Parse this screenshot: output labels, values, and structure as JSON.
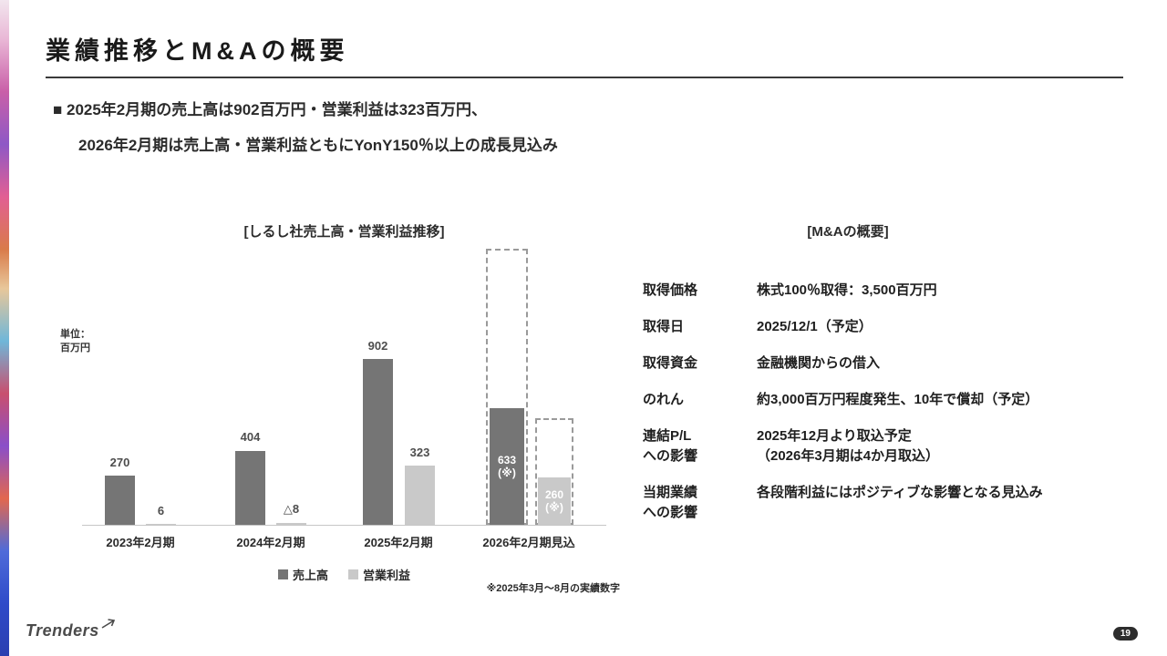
{
  "slide": {
    "title": "業績推移とM&Aの概要",
    "bullet_line1": "■ 2025年2月期の売上高は902百万円・営業利益は323百万円、",
    "bullet_line2": "2026年2月期は売上高・営業利益ともにYonY150％以上の成長見込み",
    "logo_text": "Trenders",
    "page_number": "19"
  },
  "chart": {
    "title": "[しるし社売上高・営業利益推移]",
    "unit_label": "単位：\n百万円",
    "legend": [
      {
        "label": "売上高",
        "color": "#757575"
      },
      {
        "label": "営業利益",
        "color": "#c9c9c9"
      }
    ],
    "footnote": "※2025年3月～8月の実績数字"
  },
  "chart_data": {
    "type": "bar",
    "title": "しるし社売上高・営業利益推移",
    "unit": "百万円",
    "categories": [
      "2023年2月期",
      "2024年2月期",
      "2025年2月期",
      "2026年2月期見込"
    ],
    "series": [
      {
        "name": "売上高",
        "color": "#757575",
        "values": [
          270,
          404,
          902,
          null
        ],
        "labels": [
          "270",
          "404",
          "902"
        ]
      },
      {
        "name": "営業利益",
        "color": "#c9c9c9",
        "values": [
          6,
          -8,
          323,
          null
        ],
        "labels": [
          "6",
          "△8",
          "323"
        ]
      }
    ],
    "forecast": {
      "category": "2026年2月期見込",
      "sales_actual": 633,
      "sales_actual_label": "633\n(※)",
      "sales_outline_estimate": 1500,
      "profit_actual": 260,
      "profit_actual_label": "260\n(※)",
      "profit_outline_estimate": 580
    },
    "ylim": [
      0,
      1550
    ],
    "grid": false,
    "legend_position": "bottom"
  },
  "ma": {
    "title": "[M&Aの概要]",
    "rows": [
      {
        "label": "取得価格",
        "value": "株式100％取得：3,500百万円"
      },
      {
        "label": "取得日",
        "value": "2025/12/1（予定）"
      },
      {
        "label": "取得資金",
        "value": "金融機関からの借入"
      },
      {
        "label": "のれん",
        "value": "約3,000百万円程度発生、10年で償却（予定）"
      },
      {
        "label": "連結P/L\nへの影響",
        "value": "2025年12月より取込予定\n（2026年3月期は4か月取込）"
      },
      {
        "label": "当期業績\nへの影響",
        "value": "各段階利益にはポジティブな影響となる見込み"
      }
    ]
  }
}
